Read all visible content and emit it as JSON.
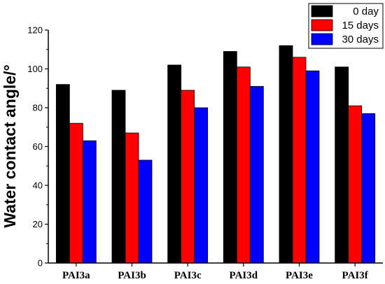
{
  "chart_data": {
    "type": "bar",
    "categories": [
      "PAI3a",
      "PAI3b",
      "PAI3c",
      "PAI3d",
      "PAI3e",
      "PAI3f"
    ],
    "series": [
      {
        "name": "0 day",
        "color": "#000000",
        "values": [
          92,
          89,
          102,
          109,
          112,
          101
        ]
      },
      {
        "name": "15 days",
        "color": "#ff0000",
        "values": [
          72,
          67,
          89,
          101,
          106,
          81
        ]
      },
      {
        "name": "30 days",
        "color": "#0000ff",
        "values": [
          63,
          53,
          80,
          91,
          99,
          77
        ]
      }
    ],
    "title": "",
    "xlabel": "",
    "ylabel": "Water contact angle/°",
    "ylim": [
      0,
      120
    ],
    "yticks": [
      0,
      20,
      40,
      60,
      80,
      100,
      120
    ],
    "legend_position": "top-right",
    "grid": false
  }
}
